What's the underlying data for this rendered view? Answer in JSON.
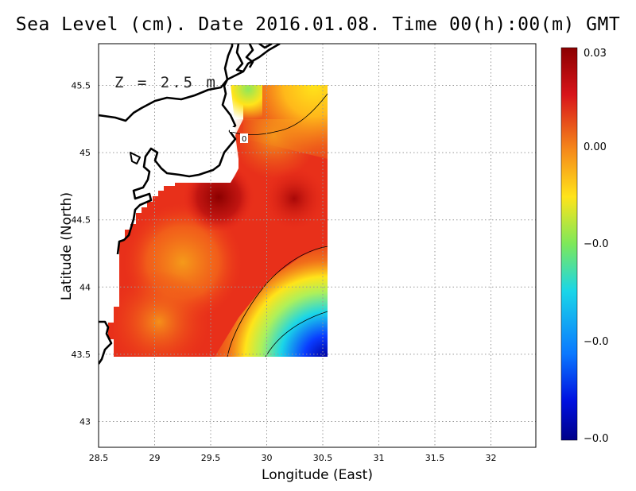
{
  "title": "Sea Level (cm). Date 2016.01.08. Time 00(h):00(m) GMT",
  "xlabel": "Longitude (East)",
  "ylabel": "Latitude (North)",
  "depth_label": "Z = 2.5 m",
  "contour_label": "0",
  "x_ticks": [
    "28.5",
    "29",
    "29.5",
    "30",
    "30.5",
    "31",
    "31.5",
    "32"
  ],
  "y_ticks": [
    "43",
    "43.5",
    "44",
    "44.5",
    "45",
    "45.5"
  ],
  "colorbar_ticks": [
    "0.03",
    "0.00",
    "−0.0",
    "−0.0",
    "−0.0"
  ],
  "colors": {
    "max": "#8b0000",
    "high": "#e8261a",
    "mid": "#f5891a",
    "zero": "#ffe41a",
    "low": "#1ad6e8",
    "min": "#0000a0"
  }
}
